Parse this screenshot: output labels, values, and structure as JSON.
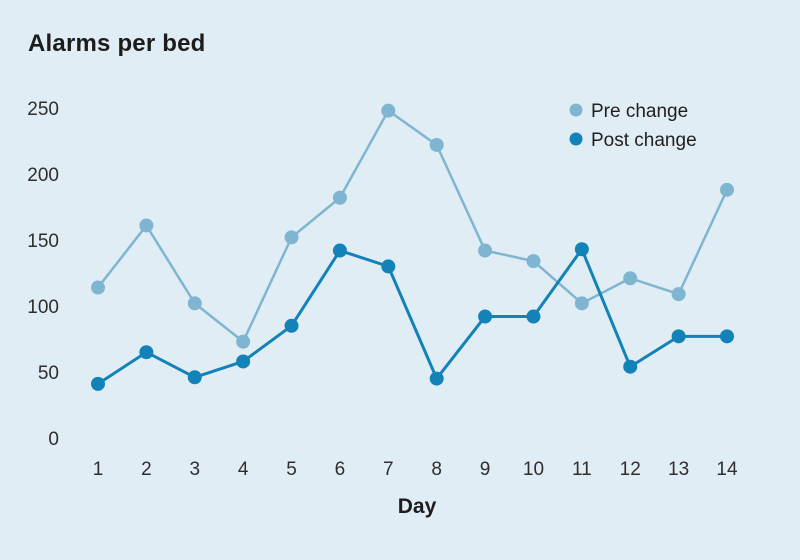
{
  "page": {
    "background": "#e1edf4"
  },
  "chart": {
    "title": "Alarms per bed",
    "xlabel": "Day"
  },
  "legend": {
    "items": [
      {
        "label": "Pre change",
        "color": "#7fb5d1"
      },
      {
        "label": "Post change",
        "color": "#1282b8"
      }
    ]
  },
  "chart_data": {
    "type": "line",
    "title": "Alarms per bed",
    "xlabel": "Day",
    "ylabel": "",
    "x": [
      1,
      2,
      3,
      4,
      5,
      6,
      7,
      8,
      9,
      10,
      11,
      12,
      13,
      14
    ],
    "series": [
      {
        "name": "Pre change",
        "color": "#7fb5d1",
        "values": [
          114,
          161,
          102,
          73,
          152,
          182,
          248,
          222,
          142,
          134,
          102,
          121,
          109,
          188
        ]
      },
      {
        "name": "Post change",
        "color": "#1282b8",
        "values": [
          41,
          65,
          46,
          58,
          85,
          142,
          130,
          45,
          92,
          92,
          143,
          54,
          77,
          77
        ]
      }
    ],
    "ylim": [
      0,
      250
    ],
    "yticks": [
      0,
      50,
      100,
      150,
      200,
      250
    ],
    "grid": false,
    "legend_position": "top-right",
    "markers": true
  }
}
